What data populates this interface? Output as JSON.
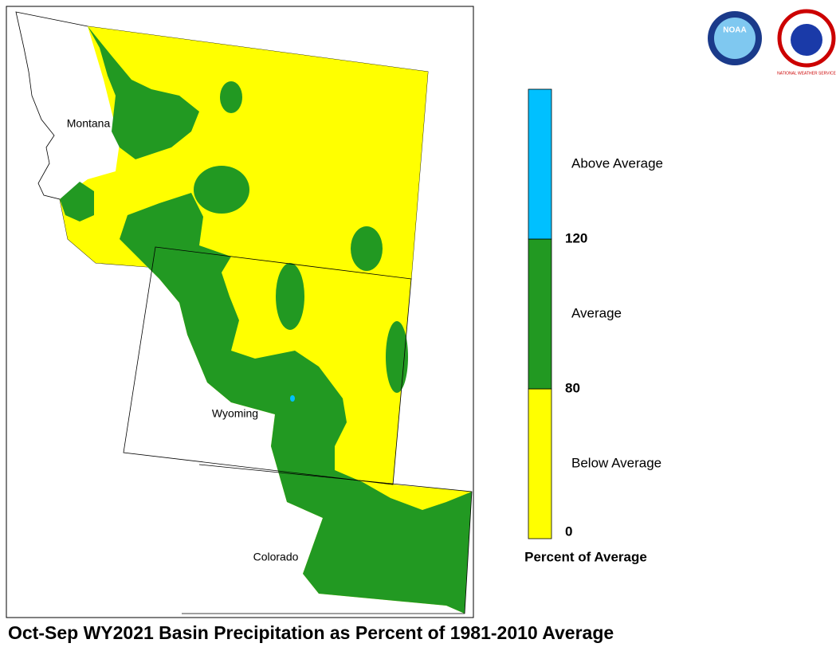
{
  "map": {
    "title": "Oct-Sep WY2021 Basin Precipitation as Percent of 1981-2010 Average",
    "state_labels": [
      "Montana",
      "Wyoming",
      "Colorado"
    ],
    "logos": [
      "NOAA",
      "NATIONAL WEATHER SERVICE"
    ],
    "legend": {
      "title": "Percent of Average",
      "ticks": [
        0,
        80,
        120
      ],
      "classes": [
        {
          "label": "Below Average",
          "color": "#ffff00"
        },
        {
          "label": "Average",
          "color": "#229922"
        },
        {
          "label": "Above Average",
          "color": "#00c0ff"
        }
      ]
    }
  }
}
